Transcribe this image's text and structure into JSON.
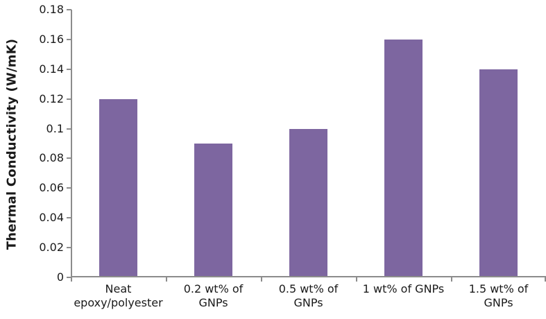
{
  "chart_data": {
    "type": "bar",
    "title": "",
    "xlabel": "",
    "ylabel": "Thermal Conductivity (W/mK)",
    "categories": [
      "Neat epoxy/polyester",
      "0.2 wt% of GNPs",
      "0.5 wt% of GNPs",
      "1 wt% of GNPs",
      "1.5 wt% of GNPs"
    ],
    "category_labels_display": [
      "Neat\nepoxy/polyester",
      "0.2 wt% of\nGNPs",
      "0.5 wt% of\nGNPs",
      "1 wt% of GNPs",
      "1.5 wt% of\nGNPs"
    ],
    "values": [
      0.12,
      0.09,
      0.1,
      0.16,
      0.14
    ],
    "ylim": [
      0,
      0.18
    ],
    "y_tick_labels": [
      "0",
      "0.02",
      "0.04",
      "0.06",
      "0.08",
      "0.1",
      "0.12",
      "0.14",
      "0.16",
      "0.18"
    ],
    "grid": false,
    "legend": false,
    "bar_color": "#7d66a0",
    "axis_color": "#8c8c8c",
    "text_color": "#1a1a1a"
  }
}
